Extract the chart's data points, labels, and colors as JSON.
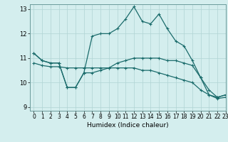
{
  "xlabel": "Humidex (Indice chaleur)",
  "bg_color": "#d4eeee",
  "line_color": "#1a6b6b",
  "xlim": [
    -0.5,
    23
  ],
  "ylim": [
    8.85,
    13.2
  ],
  "yticks": [
    9,
    10,
    11,
    12,
    13
  ],
  "xticks": [
    0,
    1,
    2,
    3,
    4,
    5,
    6,
    7,
    8,
    9,
    10,
    11,
    12,
    13,
    14,
    15,
    16,
    17,
    18,
    19,
    20,
    21,
    22,
    23
  ],
  "series": [
    {
      "x": [
        0,
        1,
        2,
        3,
        4,
        5,
        6,
        7,
        8,
        9,
        10,
        11,
        12,
        13,
        14,
        15,
        16,
        17,
        18,
        19,
        20,
        21,
        22,
        23
      ],
      "y": [
        11.2,
        10.9,
        10.8,
        10.8,
        9.8,
        9.8,
        10.4,
        11.9,
        12.0,
        12.0,
        12.2,
        12.6,
        13.1,
        12.5,
        12.4,
        12.8,
        12.2,
        11.7,
        11.5,
        10.9,
        10.2,
        9.5,
        9.4,
        9.5
      ]
    },
    {
      "x": [
        0,
        1,
        2,
        3,
        4,
        5,
        6,
        7,
        8,
        9,
        10,
        11,
        12,
        13,
        14,
        15,
        16,
        17,
        18,
        19,
        20,
        21,
        22,
        23
      ],
      "y": [
        11.2,
        10.9,
        10.8,
        10.8,
        9.8,
        9.8,
        10.4,
        10.4,
        10.5,
        10.6,
        10.8,
        10.9,
        11.0,
        11.0,
        11.0,
        11.0,
        10.9,
        10.9,
        10.8,
        10.7,
        10.2,
        9.7,
        9.4,
        9.5
      ]
    },
    {
      "x": [
        0,
        1,
        2,
        3,
        4,
        5,
        6,
        7,
        8,
        9,
        10,
        11,
        12,
        13,
        14,
        15,
        16,
        17,
        18,
        19,
        20,
        21,
        22,
        23
      ],
      "y": [
        10.8,
        10.7,
        10.65,
        10.65,
        10.6,
        10.6,
        10.6,
        10.6,
        10.6,
        10.6,
        10.6,
        10.6,
        10.6,
        10.5,
        10.5,
        10.4,
        10.3,
        10.2,
        10.1,
        10.0,
        9.7,
        9.5,
        9.35,
        9.4
      ]
    }
  ]
}
